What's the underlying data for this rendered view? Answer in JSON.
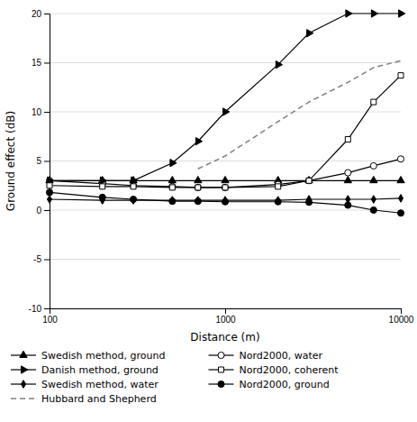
{
  "chart_data": {
    "type": "line",
    "xlabel": "Distance (m)",
    "ylabel": "Ground effect (dB)",
    "log": "x",
    "grid": true,
    "legend": "bottom",
    "xlim": [
      100,
      10000
    ],
    "ylim": [
      -10,
      20
    ],
    "xticks": [
      100,
      1000,
      10000
    ],
    "yticks": [
      -10,
      -5,
      0,
      5,
      10,
      15,
      20
    ],
    "x": [
      100,
      200,
      300,
      500,
      700,
      1000,
      2000,
      3000,
      5000,
      7000,
      10000
    ],
    "series": [
      {
        "name": "Swedish method, ground",
        "color": "black",
        "marker": "triangle-up",
        "line_style": "solid",
        "values": [
          3.0,
          3.0,
          3.0,
          3.0,
          3.0,
          3.0,
          3.0,
          3.0,
          3.0,
          3.0,
          3.0
        ]
      },
      {
        "name": "Nord2000, water",
        "color": "black",
        "marker": "circle-open",
        "line_style": "solid",
        "values": [
          3.0,
          2.7,
          2.5,
          2.4,
          2.3,
          2.3,
          2.6,
          3.0,
          3.8,
          4.5,
          5.2
        ]
      },
      {
        "name": "Danish method, ground",
        "color": "black",
        "marker": "triangle-right",
        "line_style": "solid",
        "values": [
          3.0,
          3.0,
          3.0,
          4.8,
          7.0,
          10.0,
          14.8,
          18.0,
          20.0,
          20.0,
          20.0
        ]
      },
      {
        "name": "Nord2000, coherent",
        "color": "black",
        "marker": "square-open",
        "line_style": "solid",
        "values": [
          2.5,
          2.4,
          2.4,
          2.3,
          2.3,
          2.3,
          2.4,
          3.0,
          7.2,
          11.0,
          13.7
        ]
      },
      {
        "name": "Swedish method, water",
        "color": "black",
        "marker": "diamond",
        "line_style": "solid",
        "values": [
          1.1,
          1.0,
          1.0,
          1.0,
          1.0,
          1.0,
          1.0,
          1.1,
          1.1,
          1.1,
          1.2
        ]
      },
      {
        "name": "Nord2000, ground",
        "color": "black",
        "marker": "circle",
        "line_style": "solid",
        "values": [
          1.8,
          1.3,
          1.1,
          0.9,
          0.9,
          0.85,
          0.85,
          0.8,
          0.5,
          0.0,
          -0.3
        ]
      },
      {
        "name": "Hubbard and Shepherd",
        "color": "#808080",
        "marker": "none",
        "line_style": "dashed",
        "x": [
          700,
          1000,
          2000,
          3000,
          5000,
          7000,
          10000
        ],
        "values": [
          4.2,
          5.5,
          9.0,
          11.0,
          13.0,
          14.5,
          15.2
        ]
      }
    ]
  }
}
